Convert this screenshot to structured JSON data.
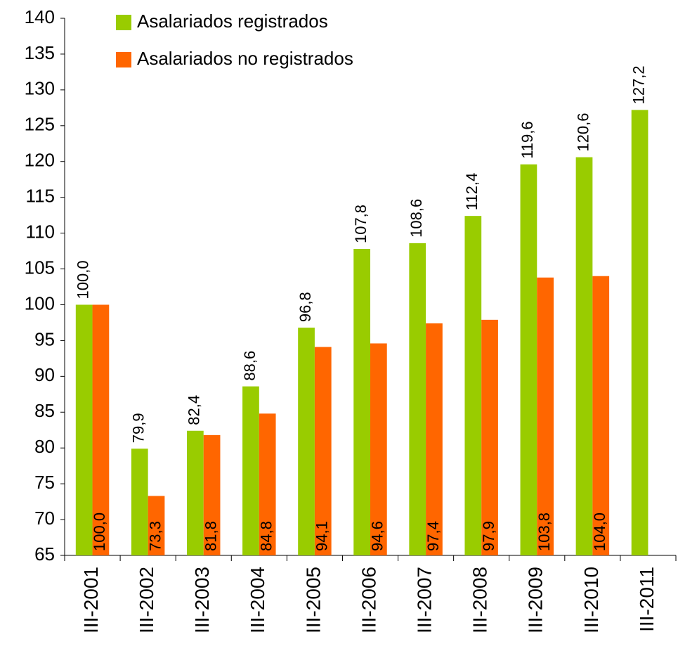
{
  "chart_data": {
    "type": "bar",
    "categories": [
      "III-2001",
      "III-2002",
      "III-2003",
      "III-2004",
      "III-2005",
      "III-2006",
      "III-2007",
      "III-2008",
      "III-2009",
      "III-2010",
      "III-2011"
    ],
    "series": [
      {
        "name": "Asalariados registrados",
        "color": "#99cc00",
        "values": [
          100.0,
          79.9,
          82.4,
          88.6,
          96.8,
          107.8,
          108.6,
          112.4,
          119.6,
          120.6,
          127.2
        ],
        "value_labels": [
          "100,0",
          "79,9",
          "82,4",
          "88,6",
          "96,8",
          "107,8",
          "108,6",
          "112,4",
          "119,6",
          "120,6",
          "127,2"
        ]
      },
      {
        "name": "Asalariados no registrados",
        "color": "#ff6600",
        "values": [
          100.0,
          73.3,
          81.8,
          84.8,
          94.1,
          94.6,
          97.4,
          97.9,
          103.8,
          104.0,
          null
        ],
        "value_labels": [
          "100,0",
          "73,3",
          "81,8",
          "84,8",
          "94,1",
          "94,6",
          "97,4",
          "97,9",
          "103,8",
          "104,0",
          null
        ]
      }
    ],
    "ylim": [
      65,
      140
    ],
    "yticks": [
      65,
      70,
      75,
      80,
      85,
      90,
      95,
      100,
      105,
      110,
      115,
      120,
      125,
      130,
      135,
      140
    ],
    "grid": false,
    "legend": "upper left"
  }
}
